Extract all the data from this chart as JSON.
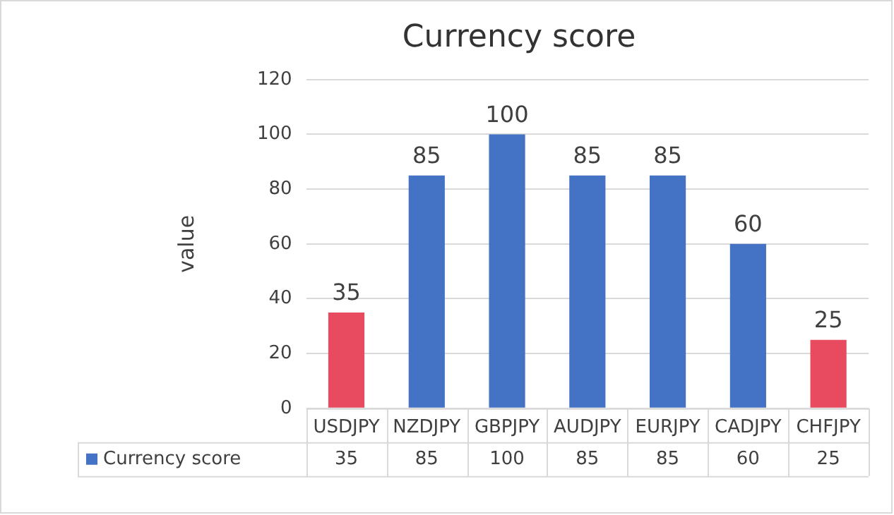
{
  "chart_data": {
    "type": "bar",
    "title": "Currency score",
    "ylabel": "value",
    "categories": [
      "USDJPY",
      "NZDJPY",
      "GBPJPY",
      "AUDJPY",
      "EURJPY",
      "CADJPY",
      "CHFJPY"
    ],
    "series": [
      {
        "name": "Currency score",
        "color": "#4472c4",
        "colors": [
          "#e84a5f",
          "#4472c4",
          "#4472c4",
          "#4472c4",
          "#4472c4",
          "#4472c4",
          "#e84a5f"
        ],
        "values": [
          35,
          85,
          100,
          85,
          85,
          60,
          25
        ]
      }
    ],
    "ylim": [
      0,
      120
    ],
    "yticks": [
      0,
      20,
      40,
      60,
      80,
      100,
      120
    ],
    "grid": "y",
    "legend": "bottom",
    "data_labels": true,
    "annotations": [
      "35",
      "85",
      "100",
      "85",
      "85",
      "60",
      "25"
    ]
  }
}
